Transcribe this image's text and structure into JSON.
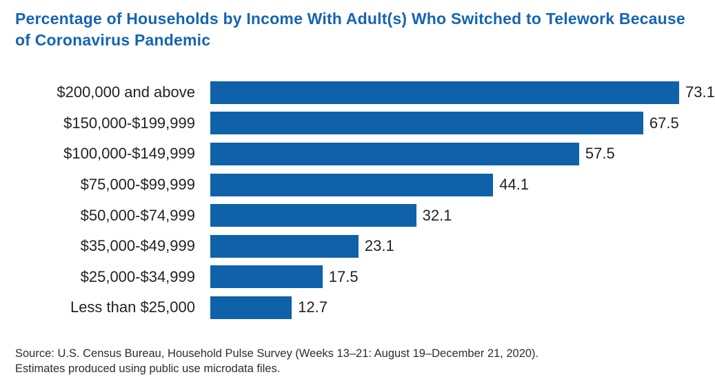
{
  "title": "Percentage of Households by Income With Adult(s) Who Switched to Telework Because of Coronavirus Pandemic",
  "source": {
    "line1": "Source: U.S. Census Bureau, Household Pulse Survey (Weeks 13–21: August 19–December 21, 2020).",
    "line2": "Estimates produced using public use microdata files."
  },
  "colors": {
    "title_blue": "#1565b2",
    "bar_blue": "#0f62a9",
    "label_dark": "#231f20"
  },
  "chart_data": {
    "type": "bar",
    "orientation": "horizontal",
    "title": "Percentage of Households by Income With Adult(s) Who Switched to Telework Because of Coronavirus Pandemic",
    "categories": [
      "$200,000 and above",
      "$150,000-$199,999",
      "$100,000-$149,999",
      "$75,000-$99,999",
      "$50,000-$74,999",
      "$35,000-$49,999",
      "$25,000-$34,999",
      "Less than $25,000"
    ],
    "values": [
      73.1,
      67.5,
      57.5,
      44.1,
      32.1,
      23.1,
      17.5,
      12.7
    ],
    "value_labels": [
      "73.1",
      "67.5",
      "57.5",
      "44.1",
      "32.1",
      "23.1",
      "17.5",
      "12.7"
    ],
    "xlabel": "",
    "ylabel": "",
    "xlim": [
      0,
      75
    ],
    "grid": false,
    "legend": false,
    "data_labels_shown": true,
    "axis_ticks_shown": false
  }
}
